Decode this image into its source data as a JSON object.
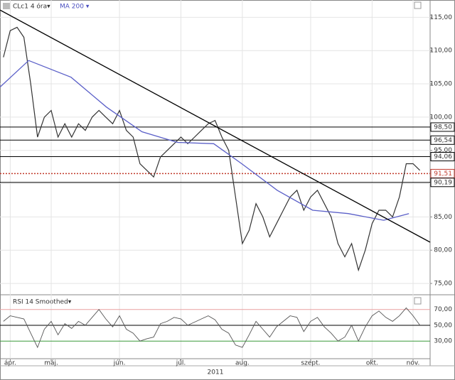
{
  "chart_data": {
    "type": "line",
    "title": "CLc1 4 óra▾",
    "indicator": "MA 200 ▾",
    "year": "2011",
    "xlim": [
      -0.5,
      62.5
    ],
    "xticks": [
      {
        "value": 1,
        "label": "ápr."
      },
      {
        "value": 7,
        "label": "máj."
      },
      {
        "value": 17,
        "label": "jún."
      },
      {
        "value": 26,
        "label": "júl."
      },
      {
        "value": 35,
        "label": "aug."
      },
      {
        "value": 45,
        "label": "szept."
      },
      {
        "value": 54,
        "label": "okt."
      },
      {
        "value": 60,
        "label": "nov."
      }
    ],
    "ylim": [
      73.3,
      117.6
    ],
    "yticks": [
      {
        "value": 75,
        "label": "75,00"
      },
      {
        "value": 80,
        "label": "80,00"
      },
      {
        "value": 85,
        "label": "85,00"
      },
      {
        "value": 90,
        "label": "90,00"
      },
      {
        "value": 95,
        "label": "95,00"
      },
      {
        "value": 100,
        "label": "100,00"
      },
      {
        "value": 105,
        "label": "105,00"
      },
      {
        "value": 110,
        "label": "110,00"
      },
      {
        "value": 115,
        "label": "115,00"
      }
    ],
    "grid": true,
    "series": [
      {
        "color": "#333333",
        "values": [
          109,
          113,
          113.5,
          112,
          105,
          97,
          100,
          101,
          97,
          99,
          97,
          99,
          98,
          100,
          101,
          100,
          99,
          101,
          98,
          97,
          93,
          92,
          91,
          94,
          95,
          96,
          97,
          96,
          97,
          98,
          99,
          99.5,
          97,
          95,
          88,
          81,
          83,
          87,
          85,
          82,
          84,
          86,
          88,
          89,
          86,
          88,
          89,
          87,
          85,
          81,
          79,
          81,
          77,
          80,
          84,
          86,
          86,
          85,
          88,
          93,
          93,
          92
        ]
      },
      {
        "name": "MA 200",
        "color": "#5a5fc8",
        "x": [
          -0.5,
          3.7,
          9.9,
          15.1,
          20.3,
          25.5,
          30.8,
          34.9,
          40.1,
          45.3,
          50.5,
          55.7,
          59.4
        ],
        "values": [
          104.5,
          108.5,
          106,
          101.5,
          97.8,
          96.2,
          96,
          93,
          89,
          86,
          85.5,
          84.5,
          85.5
        ]
      },
      {
        "color": "#000000",
        "x": [
          -0.5,
          62.5
        ],
        "values": [
          116.1,
          81.2
        ]
      }
    ],
    "levels": [
      {
        "value": 98.5,
        "label": "98,50",
        "color": "#000000"
      },
      {
        "value": 96.54,
        "label": "96,54",
        "color": "#000000"
      },
      {
        "value": 94.06,
        "label": "94,06",
        "color": "#000000"
      },
      {
        "value": 91.51,
        "label": "91,51",
        "color": "#c0392b"
      },
      {
        "value": 90.19,
        "label": "90,19",
        "color": "#000000"
      }
    ],
    "rsi": {
      "title": "RSI 14 Smoothed▾",
      "color": "#555555",
      "ylim": [
        7.7,
        88.6
      ],
      "yticks": [
        {
          "value": 70,
          "label": "70,00",
          "color": "#e8a0a0"
        },
        {
          "value": 50,
          "label": "50,00",
          "color": "#000000"
        },
        {
          "value": 30,
          "label": "30,00",
          "color": "#3a9a3a"
        }
      ],
      "values": [
        55,
        62,
        60,
        58,
        40,
        22,
        45,
        55,
        38,
        52,
        46,
        55,
        50,
        60,
        70,
        58,
        48,
        62,
        45,
        40,
        30,
        33,
        35,
        52,
        55,
        60,
        58,
        50,
        54,
        58,
        62,
        57,
        45,
        40,
        25,
        22,
        38,
        55,
        45,
        35,
        48,
        55,
        62,
        60,
        42,
        55,
        60,
        48,
        40,
        30,
        35,
        50,
        30,
        48,
        62,
        68,
        60,
        55,
        62,
        72,
        62,
        50
      ]
    }
  }
}
